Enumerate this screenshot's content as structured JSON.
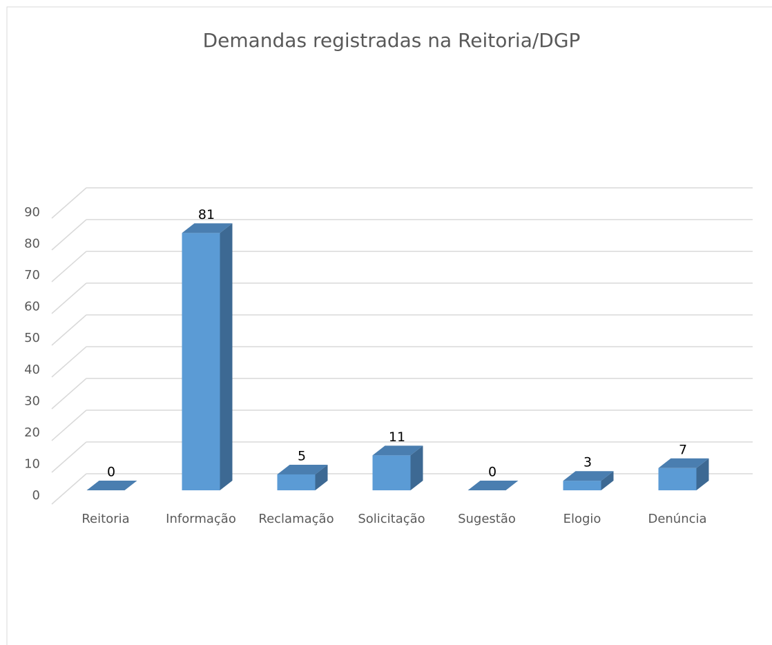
{
  "chart_data": {
    "type": "bar3d",
    "title": "Demandas registradas na Reitoria/DGP",
    "categories": [
      "Reitoria",
      "Informação",
      "Reclamação",
      "Solicitação",
      "Sugestão",
      "Elogio",
      "Denúncia"
    ],
    "values": [
      0,
      81,
      5,
      11,
      0,
      3,
      7
    ],
    "color": "#5b9bd5",
    "ylim": [
      0,
      90
    ],
    "yticks": [
      0,
      10,
      20,
      30,
      40,
      50,
      60,
      70,
      80,
      90
    ],
    "grid": true
  }
}
